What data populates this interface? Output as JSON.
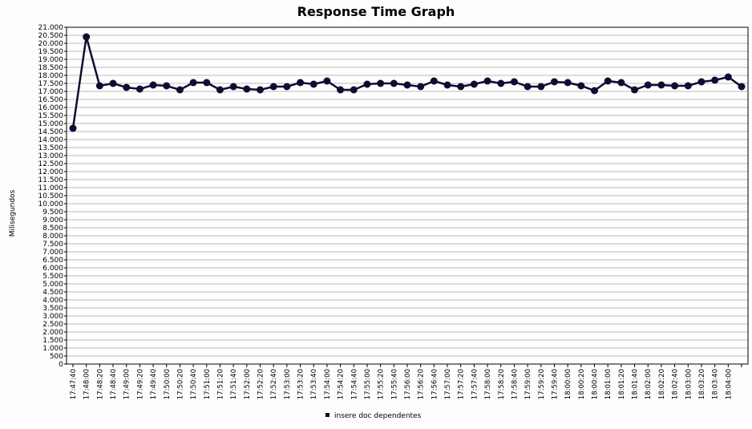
{
  "chart_data": {
    "type": "line",
    "title": "Response Time Graph",
    "ylabel": "Milisegundos",
    "categories": [
      "17:47:40",
      "17:48:00",
      "17:48:20",
      "17:48:40",
      "17:49:00",
      "17:49:20",
      "17:49:40",
      "17:50:00",
      "17:50:20",
      "17:50:40",
      "17:51:00",
      "17:51:20",
      "17:51:40",
      "17:52:00",
      "17:52:20",
      "17:52:40",
      "17:53:00",
      "17:53:20",
      "17:53:40",
      "17:54:00",
      "17:54:20",
      "17:54:40",
      "17:55:00",
      "17:55:20",
      "17:55:40",
      "17:56:00",
      "17:56:20",
      "17:56:40",
      "17:57:00",
      "17:57:20",
      "17:57:40",
      "17:58:00",
      "17:58:20",
      "17:58:40",
      "17:59:00",
      "17:59:20",
      "17:59:40",
      "18:00:00",
      "18:00:20",
      "18:00:40",
      "18:01:00",
      "18:01:20",
      "18:01:40",
      "18:02:00",
      "18:02:20",
      "18:02:40",
      "18:03:00",
      "18:03:20",
      "18:03:40",
      "18:04:00",
      null
    ],
    "series": [
      {
        "name": "insere doc dependentes",
        "color": "#0d0d33",
        "values": [
          14700,
          20400,
          17350,
          17500,
          17250,
          17150,
          17400,
          17350,
          17100,
          17550,
          17550,
          17100,
          17300,
          17150,
          17100,
          17300,
          17300,
          17550,
          17450,
          17650,
          17100,
          17100,
          17450,
          17500,
          17500,
          17400,
          17300,
          17650,
          17400,
          17300,
          17450,
          17650,
          17500,
          17600,
          17300,
          17300,
          17600,
          17550,
          17350,
          17050,
          17650,
          17550,
          17100,
          17400,
          17400,
          17350,
          17350,
          17600,
          17700,
          17900,
          17300
        ]
      }
    ],
    "ylim": [
      0,
      21000
    ],
    "yticks": [
      0,
      500,
      {
        "value": 1000,
        "label": "1.000"
      },
      {
        "value": 1500,
        "label": "1.500"
      },
      {
        "value": 2000,
        "label": "2.000"
      },
      {
        "value": 2500,
        "label": "2.500"
      },
      {
        "value": 3000,
        "label": "3.000"
      },
      {
        "value": 3500,
        "label": "3.500"
      },
      {
        "value": 4000,
        "label": "4.000"
      },
      {
        "value": 4500,
        "label": "4.500"
      },
      {
        "value": 5000,
        "label": "5.000"
      },
      {
        "value": 5500,
        "label": "5.500"
      },
      {
        "value": 6000,
        "label": "6.000"
      },
      {
        "value": 6500,
        "label": "6.500"
      },
      {
        "value": 7000,
        "label": "7.000"
      },
      {
        "value": 7500,
        "label": "7.500"
      },
      {
        "value": 8000,
        "label": "8.000"
      },
      {
        "value": 8500,
        "label": "8.500"
      },
      {
        "value": 9000,
        "label": "9.000"
      },
      {
        "value": 9500,
        "label": "9.500"
      },
      {
        "value": 10000,
        "label": "10.000"
      },
      {
        "value": 10500,
        "label": "10.500"
      },
      {
        "value": 11000,
        "label": "11.000"
      },
      {
        "value": 11500,
        "label": "11.500"
      },
      {
        "value": 12000,
        "label": "12.000"
      },
      {
        "value": 12500,
        "label": "12.500"
      },
      {
        "value": 13000,
        "label": "13.000"
      },
      {
        "value": 13500,
        "label": "13.500"
      },
      {
        "value": 14000,
        "label": "14.000"
      },
      {
        "value": 14500,
        "label": "14.500"
      },
      {
        "value": 15000,
        "label": "15.000"
      },
      {
        "value": 15500,
        "label": "15.500"
      },
      {
        "value": 16000,
        "label": "16.000"
      },
      {
        "value": 16500,
        "label": "16.500"
      },
      {
        "value": 17000,
        "label": "17.000"
      },
      {
        "value": 17500,
        "label": "17.500"
      },
      {
        "value": 18000,
        "label": "18.000"
      },
      {
        "value": 18500,
        "label": "18.500"
      },
      {
        "value": 19000,
        "label": "19.000"
      },
      {
        "value": 19500,
        "label": "19.500"
      },
      {
        "value": 20000,
        "label": "20.000"
      },
      {
        "value": 20500,
        "label": "20.500"
      },
      {
        "value": 21000,
        "label": "21.000"
      }
    ],
    "grid": true
  }
}
